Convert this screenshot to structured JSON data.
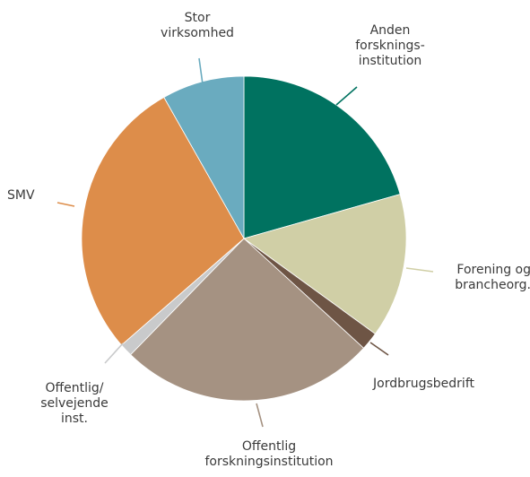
{
  "chart_data": {
    "type": "pie",
    "start_angle_deg": 0,
    "direction": "clockwise",
    "slices": [
      {
        "label": [
          "Anden",
          "forsknings-",
          "institution"
        ],
        "value": 20.6,
        "color": "#007260"
      },
      {
        "label": [
          "Forening og",
          "brancheorg."
        ],
        "value": 14.4,
        "color": "#d0cfa6"
      },
      {
        "label": [
          "Jordbrugsbedrift"
        ],
        "value": 1.8,
        "color": "#6e5545"
      },
      {
        "label": [
          "Offentlig",
          "forskningsinstitution"
        ],
        "value": 25.5,
        "color": "#a59282"
      },
      {
        "label": [
          "Offentlig/",
          "selvejende",
          "inst."
        ],
        "value": 1.3,
        "color": "#c9cacb"
      },
      {
        "label": [
          "SMV"
        ],
        "value": 28.2,
        "color": "#dd8d4a"
      },
      {
        "label": [
          "Stor",
          "virksomhed"
        ],
        "value": 8.2,
        "color": "#6aabbf"
      }
    ]
  }
}
